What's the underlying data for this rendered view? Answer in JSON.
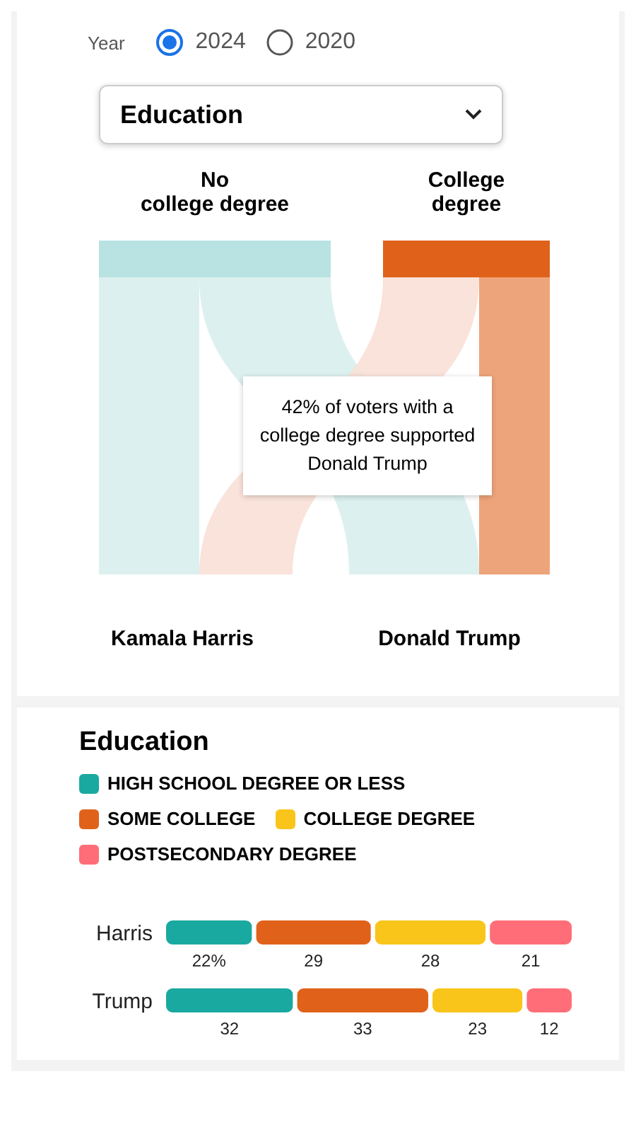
{
  "chart_data": [
    {
      "type": "other",
      "annotations": [
        "Year",
        "2024",
        "2020",
        "Education",
        "Kamala Harris",
        "Donald Trump",
        "42% of voters with a college degree supported Donald Trump"
      ],
      "categories": [
        "No\ncollege degree",
        "College\ndegree"
      ],
      "colors": [
        "#b9e3e3",
        "#e0621a"
      ]
    },
    {
      "type": "bar",
      "title": "Education",
      "orientation": "horizontal",
      "stacked": true,
      "legend": "top",
      "categories": [
        "Harris",
        "Trump"
      ],
      "series": [
        {
          "name": "HIGH SCHOOL DEGREE OR LESS",
          "color": "#1aa9a0",
          "values": [
            22,
            32
          ],
          "value_labels": [
            "22%",
            "32"
          ]
        },
        {
          "name": "SOME COLLEGE",
          "color": "#e0621a",
          "values": [
            29,
            33
          ],
          "value_labels": [
            "29",
            "33"
          ]
        },
        {
          "name": "COLLEGE DEGREE",
          "color": "#f9c51a",
          "values": [
            28,
            23
          ],
          "value_labels": [
            "28",
            "23"
          ]
        },
        {
          "name": "POSTSECONDARY DEGREE",
          "color": "#ff6e78",
          "values": [
            21,
            12
          ],
          "value_labels": [
            "21",
            "12"
          ]
        }
      ]
    }
  ]
}
